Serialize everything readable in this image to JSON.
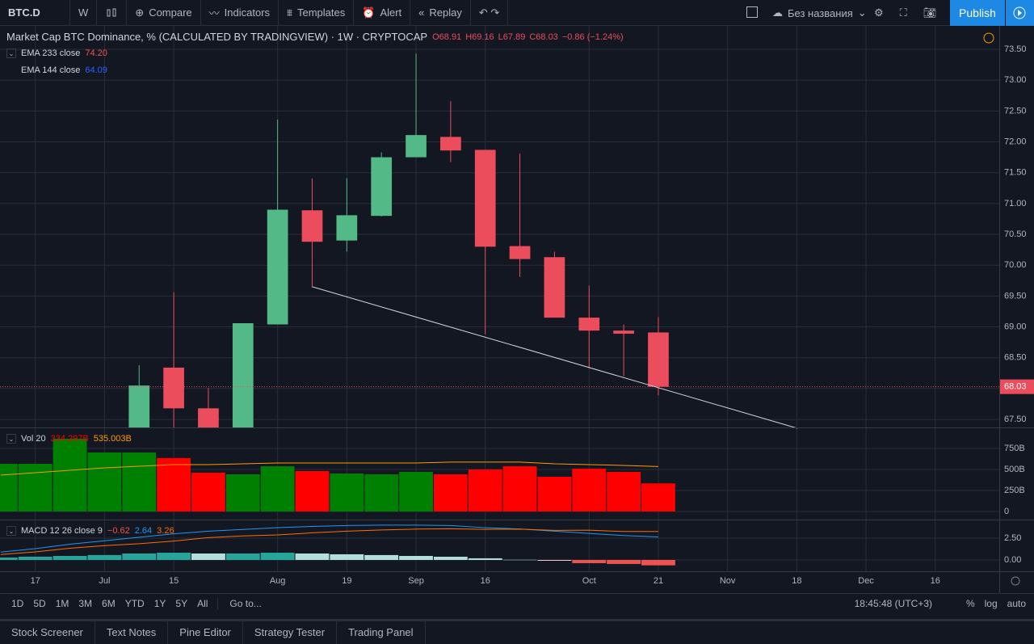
{
  "toolbar": {
    "symbol": "BTC.D",
    "interval": "W",
    "buttons": [
      "Compare",
      "Indicators",
      "Templates",
      "Alert",
      "Replay"
    ],
    "layout_name": "Без названия",
    "publish": "Publish"
  },
  "legend": {
    "title": "Market Cap BTC Dominance, % (CALCULATED BY TRADINGVIEW) · 1W · CRYPTOCAP",
    "ohlc": [
      "O68.91",
      "H69.16",
      "L67.89",
      "C68.03",
      "−0.86 (−1.24%)"
    ],
    "indicators": [
      {
        "label": "EMA 233 close",
        "value": "74.20",
        "color": "#ef5350"
      },
      {
        "label": "EMA 144 close",
        "value": "64.09",
        "color": "#2962ff"
      }
    ],
    "volume": {
      "label": "Vol 20",
      "values": [
        "334.297B",
        "535.003B"
      ]
    },
    "macd": {
      "label": "MACD 12 26 close 9",
      "values": [
        "−0.62",
        "2.64",
        "3.26"
      ]
    }
  },
  "chart_data": [
    {
      "type": "candlestick",
      "open": [
        null,
        null,
        null,
        null,
        67.3,
        68.34,
        67.68,
        67.3,
        69.04,
        70.89,
        70.4,
        70.8,
        71.75,
        72.08,
        71.87,
        70.31,
        70.13,
        69.15,
        68.94,
        68.91
      ],
      "high": [
        null,
        null,
        null,
        null,
        68.38,
        69.56,
        68.01,
        69.06,
        72.36,
        71.41,
        71.41,
        71.83,
        73.43,
        72.66,
        71.87,
        71.81,
        70.22,
        69.67,
        69.04,
        69.16
      ],
      "low": [
        null,
        null,
        null,
        null,
        67.2,
        67.2,
        67.2,
        67.3,
        69.04,
        69.64,
        70.22,
        70.79,
        71.75,
        71.67,
        68.88,
        69.81,
        69.15,
        68.33,
        68.2,
        67.89
      ],
      "close": [
        null,
        null,
        null,
        null,
        68.05,
        67.68,
        67.3,
        69.06,
        70.9,
        70.38,
        70.81,
        71.75,
        72.11,
        71.86,
        70.3,
        70.1,
        69.15,
        68.94,
        68.89,
        68.03
      ],
      "up_color": "#53b987",
      "down_color": "#eb4d5c",
      "xlim": [
        -0.02,
        28.85
      ],
      "xticks": [
        {
          "value": 1,
          "label": "17"
        },
        {
          "value": 3,
          "label": "Jul"
        },
        {
          "value": 5,
          "label": "15"
        },
        {
          "value": 8,
          "label": "Aug"
        },
        {
          "value": 10,
          "label": "19"
        },
        {
          "value": 12,
          "label": "Sep"
        },
        {
          "value": 14,
          "label": "16"
        },
        {
          "value": 17,
          "label": "Oct"
        },
        {
          "value": 19,
          "label": "21"
        },
        {
          "value": 21,
          "label": "Nov"
        },
        {
          "value": 23,
          "label": "18"
        },
        {
          "value": 25,
          "label": "Dec"
        },
        {
          "value": 27,
          "label": "16"
        }
      ],
      "ylim": [
        67.37,
        73.88
      ],
      "yticks": [
        {
          "value": 67.5,
          "label": "67.50"
        },
        {
          "value": 68,
          "label": "68.00"
        },
        {
          "value": 68.5,
          "label": "68.50"
        },
        {
          "value": 69,
          "label": "69.00"
        },
        {
          "value": 69.5,
          "label": "69.50"
        },
        {
          "value": 70,
          "label": "70.00"
        },
        {
          "value": 70.5,
          "label": "70.50"
        },
        {
          "value": 71,
          "label": "71.00"
        },
        {
          "value": 71.5,
          "label": "71.50"
        },
        {
          "value": 72,
          "label": "72.00"
        },
        {
          "value": 72.5,
          "label": "72.50"
        },
        {
          "value": 73,
          "label": "73.00"
        },
        {
          "value": 73.5,
          "label": "73.50"
        }
      ],
      "last_price": {
        "value": 68.03,
        "label": "68.03"
      },
      "grid": true
    },
    {
      "type": "bar",
      "values": [
        567,
        567,
        865,
        702,
        702,
        635,
        462,
        442,
        538,
        481,
        452,
        442,
        471,
        442,
        500,
        538,
        413,
        510,
        471,
        334.297
      ],
      "colors": [
        "#008000",
        "#008000",
        "#008000",
        "#008000",
        "#008000",
        "#ff0000",
        "#ff0000",
        "#008000",
        "#008000",
        "#ff0000",
        "#008000",
        "#008000",
        "#008000",
        "#ff0000",
        "#ff0000",
        "#ff0000",
        "#ff0000",
        "#ff0000",
        "#ff0000",
        "#ff0000"
      ],
      "ma": {
        "color": "#ff9800",
        "values": [
          433,
          462,
          490,
          519,
          538,
          558,
          558,
          567,
          577,
          577,
          577,
          577,
          577,
          587,
          587,
          587,
          567,
          558,
          548,
          535.003
        ]
      },
      "ylim": [
        -96,
        990
      ],
      "yticks": [
        {
          "value": 0,
          "label": "0"
        },
        {
          "value": 250,
          "label": "250B"
        },
        {
          "value": 500,
          "label": "500B"
        },
        {
          "value": 750,
          "label": "750B"
        }
      ]
    },
    {
      "type": "macd",
      "histogram": [
        0.28,
        0.37,
        0.46,
        0.56,
        0.74,
        0.83,
        0.74,
        0.74,
        0.83,
        0.74,
        0.65,
        0.56,
        0.46,
        0.37,
        0.19,
        0.02,
        -0.09,
        -0.37,
        -0.46,
        -0.62
      ],
      "histogram_colors": [
        "#26a69a",
        "#26a69a",
        "#26a69a",
        "#26a69a",
        "#26a69a",
        "#26a69a",
        "#b2dfdb",
        "#26a69a",
        "#26a69a",
        "#b2dfdb",
        "#b2dfdb",
        "#b2dfdb",
        "#b2dfdb",
        "#b2dfdb",
        "#b2dfdb",
        "#b2dfdb",
        "#ffcdd2",
        "#ef5350",
        "#ef5350",
        "#ef5350"
      ],
      "series": [
        {
          "color": "#2196f3",
          "values": [
            0.9,
            1.3,
            1.8,
            2.2,
            2.6,
            3.0,
            3.3,
            3.5,
            3.7,
            3.85,
            3.95,
            4.0,
            4.0,
            3.95,
            3.7,
            3.55,
            3.3,
            3.05,
            2.8,
            2.64
          ]
        },
        {
          "color": "#ff6d00",
          "values": [
            0.62,
            0.93,
            1.34,
            1.64,
            1.86,
            2.17,
            2.56,
            2.76,
            2.87,
            3.11,
            3.3,
            3.44,
            3.54,
            3.58,
            3.51,
            3.53,
            3.39,
            3.42,
            3.26,
            3.26
          ]
        }
      ],
      "ylim": [
        -1.3,
        4.54
      ],
      "yticks": [
        {
          "value": 0,
          "label": "0.00"
        },
        {
          "value": 2.5,
          "label": "2.50"
        }
      ]
    }
  ],
  "range_bar": {
    "ranges": [
      "1D",
      "5D",
      "1M",
      "3M",
      "6M",
      "YTD",
      "1Y",
      "5Y",
      "All"
    ],
    "goto": "Go to...",
    "time": "18:45:48 (UTC+3)",
    "options": [
      "%",
      "log",
      "auto"
    ]
  },
  "footer": {
    "tabs": [
      "Stock Screener",
      "Text Notes",
      "Pine Editor",
      "Strategy Tester",
      "Trading Panel"
    ]
  }
}
